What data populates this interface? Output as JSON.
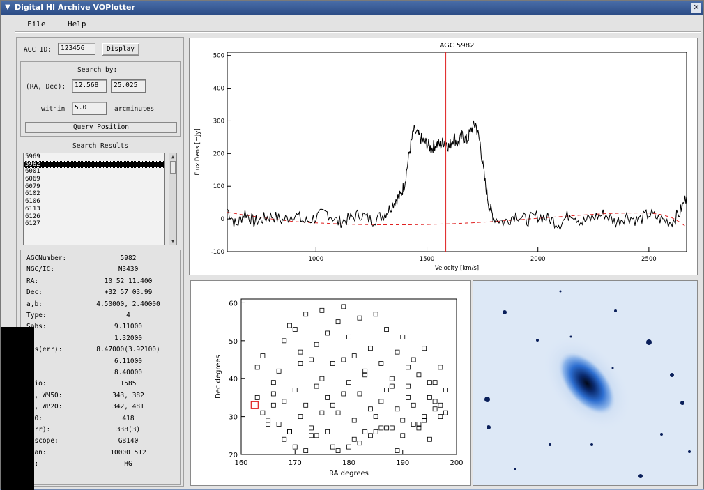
{
  "window": {
    "title": "Digital HI Archive  VOPlotter"
  },
  "menu": {
    "file": "File",
    "help": "Help"
  },
  "left": {
    "agc_label": "AGC ID:",
    "agc_value": "123456",
    "display_btn": "Display",
    "search_by": "Search by:",
    "radec_label": "(RA, Dec):",
    "ra_value": "12.568",
    "dec_value": "25.025",
    "within_label": "within",
    "within_value": "5.0",
    "arcmin_label": "arcminutes",
    "query_btn": "Query Position",
    "results_title": "Search Results",
    "results": [
      "5969",
      "5982",
      "6001",
      "6069",
      "6079",
      "6102",
      "6106",
      "6113",
      "6126",
      "6127"
    ],
    "selected_index": 1
  },
  "info": [
    {
      "k": "AGCNumber:",
      "v": "5982"
    },
    {
      "k": "NGC/IC:",
      "v": "N3430"
    },
    {
      "k": "RA:",
      "v": "10 52 11.400"
    },
    {
      "k": "Dec:",
      "v": "+32 57 03.99"
    },
    {
      "k": "a,b:",
      "v": "4.50000, 2.40000"
    },
    {
      "k": "Type:",
      "v": "4"
    },
    {
      "k": "Sabs:",
      "v": "9.11000"
    },
    {
      "k": ":",
      "v": "1.32000"
    },
    {
      "k": "abs(err):",
      "v": "8.47000(3.92100)"
    },
    {
      "k": "s:",
      "v": "6.11000"
    },
    {
      "k": "R:",
      "v": "8.40000"
    },
    {
      "k": "elio:",
      "v": "1585"
    },
    {
      "k": "50, WM50:",
      "v": "343, 382"
    },
    {
      "k": "50, WP20:",
      "v": "342, 481"
    },
    {
      "k": "P50:",
      "v": "418"
    },
    {
      "k": "(err):",
      "v": "338(3)"
    },
    {
      "k": "lescope:",
      "v": "GB140"
    },
    {
      "k": "Chan:",
      "v": "10000   512"
    },
    {
      "k": "de:",
      "v": "HG"
    }
  ],
  "chart_data": [
    {
      "type": "line",
      "title": "AGC 5982",
      "xlabel": "Velocity [km/s]",
      "ylabel": "Flux Dens [mJy]",
      "xlim": [
        600,
        2670
      ],
      "ylim": [
        -100,
        510
      ],
      "xticks": [
        1000,
        1500,
        2000,
        2500
      ],
      "yticks": [
        -100,
        0,
        100,
        200,
        300,
        400,
        500
      ],
      "marker_velocity": 1585,
      "series": [
        {
          "values_desc": "spectrum",
          "x": [
            600,
            640,
            680,
            720,
            760,
            800,
            850,
            900,
            950,
            1000,
            1050,
            1100,
            1150,
            1200,
            1250,
            1300,
            1330,
            1360,
            1380,
            1400,
            1420,
            1440,
            1460,
            1480,
            1500,
            1520,
            1540,
            1560,
            1580,
            1600,
            1620,
            1640,
            1660,
            1680,
            1700,
            1720,
            1740,
            1760,
            1780,
            1800,
            1850,
            1900,
            1950,
            2000,
            2050,
            2100,
            2150,
            2200,
            2250,
            2300,
            2350,
            2400,
            2450,
            2500,
            2550,
            2600,
            2640,
            2670
          ],
          "y": [
            30,
            -20,
            20,
            -10,
            0,
            10,
            -5,
            15,
            -10,
            5,
            20,
            -10,
            0,
            15,
            -5,
            10,
            30,
            60,
            70,
            110,
            200,
            270,
            255,
            240,
            230,
            215,
            230,
            225,
            240,
            220,
            250,
            230,
            255,
            240,
            275,
            290,
            230,
            120,
            40,
            5,
            -10,
            15,
            -5,
            10,
            0,
            -15,
            20,
            -10,
            5,
            15,
            -10,
            10,
            -5,
            15,
            0,
            -10,
            20,
            70
          ]
        },
        {
          "values_desc": "baseline fit",
          "x": [
            600,
            700,
            800,
            900,
            1000,
            1100,
            1200,
            1300,
            1400,
            1500,
            1600,
            1700,
            1800,
            1900,
            2000,
            2100,
            2200,
            2300,
            2400,
            2500,
            2550,
            2600,
            2640,
            2670
          ],
          "y": [
            20,
            10,
            0,
            -8,
            -12,
            -15,
            -17,
            -18,
            -18,
            -17,
            -15,
            -12,
            -8,
            -3,
            2,
            7,
            12,
            16,
            18,
            18,
            14,
            5,
            -10,
            -25
          ]
        }
      ]
    },
    {
      "type": "scatter",
      "xlabel": "RA degrees",
      "ylabel": "Dec degrees",
      "xlim": [
        160,
        200
      ],
      "ylim": [
        20,
        61
      ],
      "xticks": [
        160,
        170,
        180,
        190,
        200
      ],
      "yticks": [
        20,
        30,
        40,
        50,
        60
      ],
      "highlight": {
        "x": 162.5,
        "y": 33
      },
      "x": [
        163,
        164,
        166,
        168,
        169,
        170,
        171,
        172,
        173,
        174,
        175,
        176,
        177,
        178,
        179,
        180,
        181,
        182,
        183,
        184,
        185,
        186,
        187,
        188,
        189,
        190,
        191,
        192,
        193,
        194,
        195,
        196,
        197,
        198,
        165,
        167,
        169,
        171,
        173,
        175,
        177,
        179,
        181,
        183,
        185,
        187,
        189,
        191,
        193,
        195,
        197,
        164,
        166,
        168,
        170,
        172,
        174,
        176,
        178,
        180,
        182,
        184,
        186,
        188,
        190,
        192,
        194,
        196,
        198,
        163,
        167,
        171,
        175,
        179,
        183,
        187,
        191,
        195,
        165,
        169,
        173,
        177,
        181,
        185,
        189,
        193,
        197,
        166,
        170,
        174,
        178,
        182,
        186,
        190,
        194,
        168,
        172,
        176,
        180,
        184,
        188,
        192,
        196
      ],
      "y": [
        43,
        46,
        39,
        50,
        54,
        53,
        47,
        57,
        45,
        49,
        58,
        52,
        44,
        55,
        59,
        51,
        46,
        56,
        42,
        48,
        57,
        44,
        53,
        40,
        47,
        51,
        38,
        45,
        41,
        48,
        35,
        39,
        43,
        37,
        29,
        28,
        26,
        30,
        27,
        31,
        33,
        36,
        29,
        26,
        30,
        27,
        32,
        35,
        28,
        24,
        33,
        31,
        36,
        34,
        37,
        33,
        38,
        35,
        31,
        39,
        36,
        32,
        34,
        38,
        29,
        33,
        30,
        34,
        31,
        35,
        42,
        44,
        40,
        45,
        41,
        37,
        43,
        39,
        28,
        26,
        25,
        22,
        24,
        26,
        21,
        27,
        30,
        33,
        22,
        25,
        21,
        23,
        27,
        25,
        29,
        24,
        21,
        26,
        22,
        25,
        27,
        28,
        32
      ]
    }
  ]
}
